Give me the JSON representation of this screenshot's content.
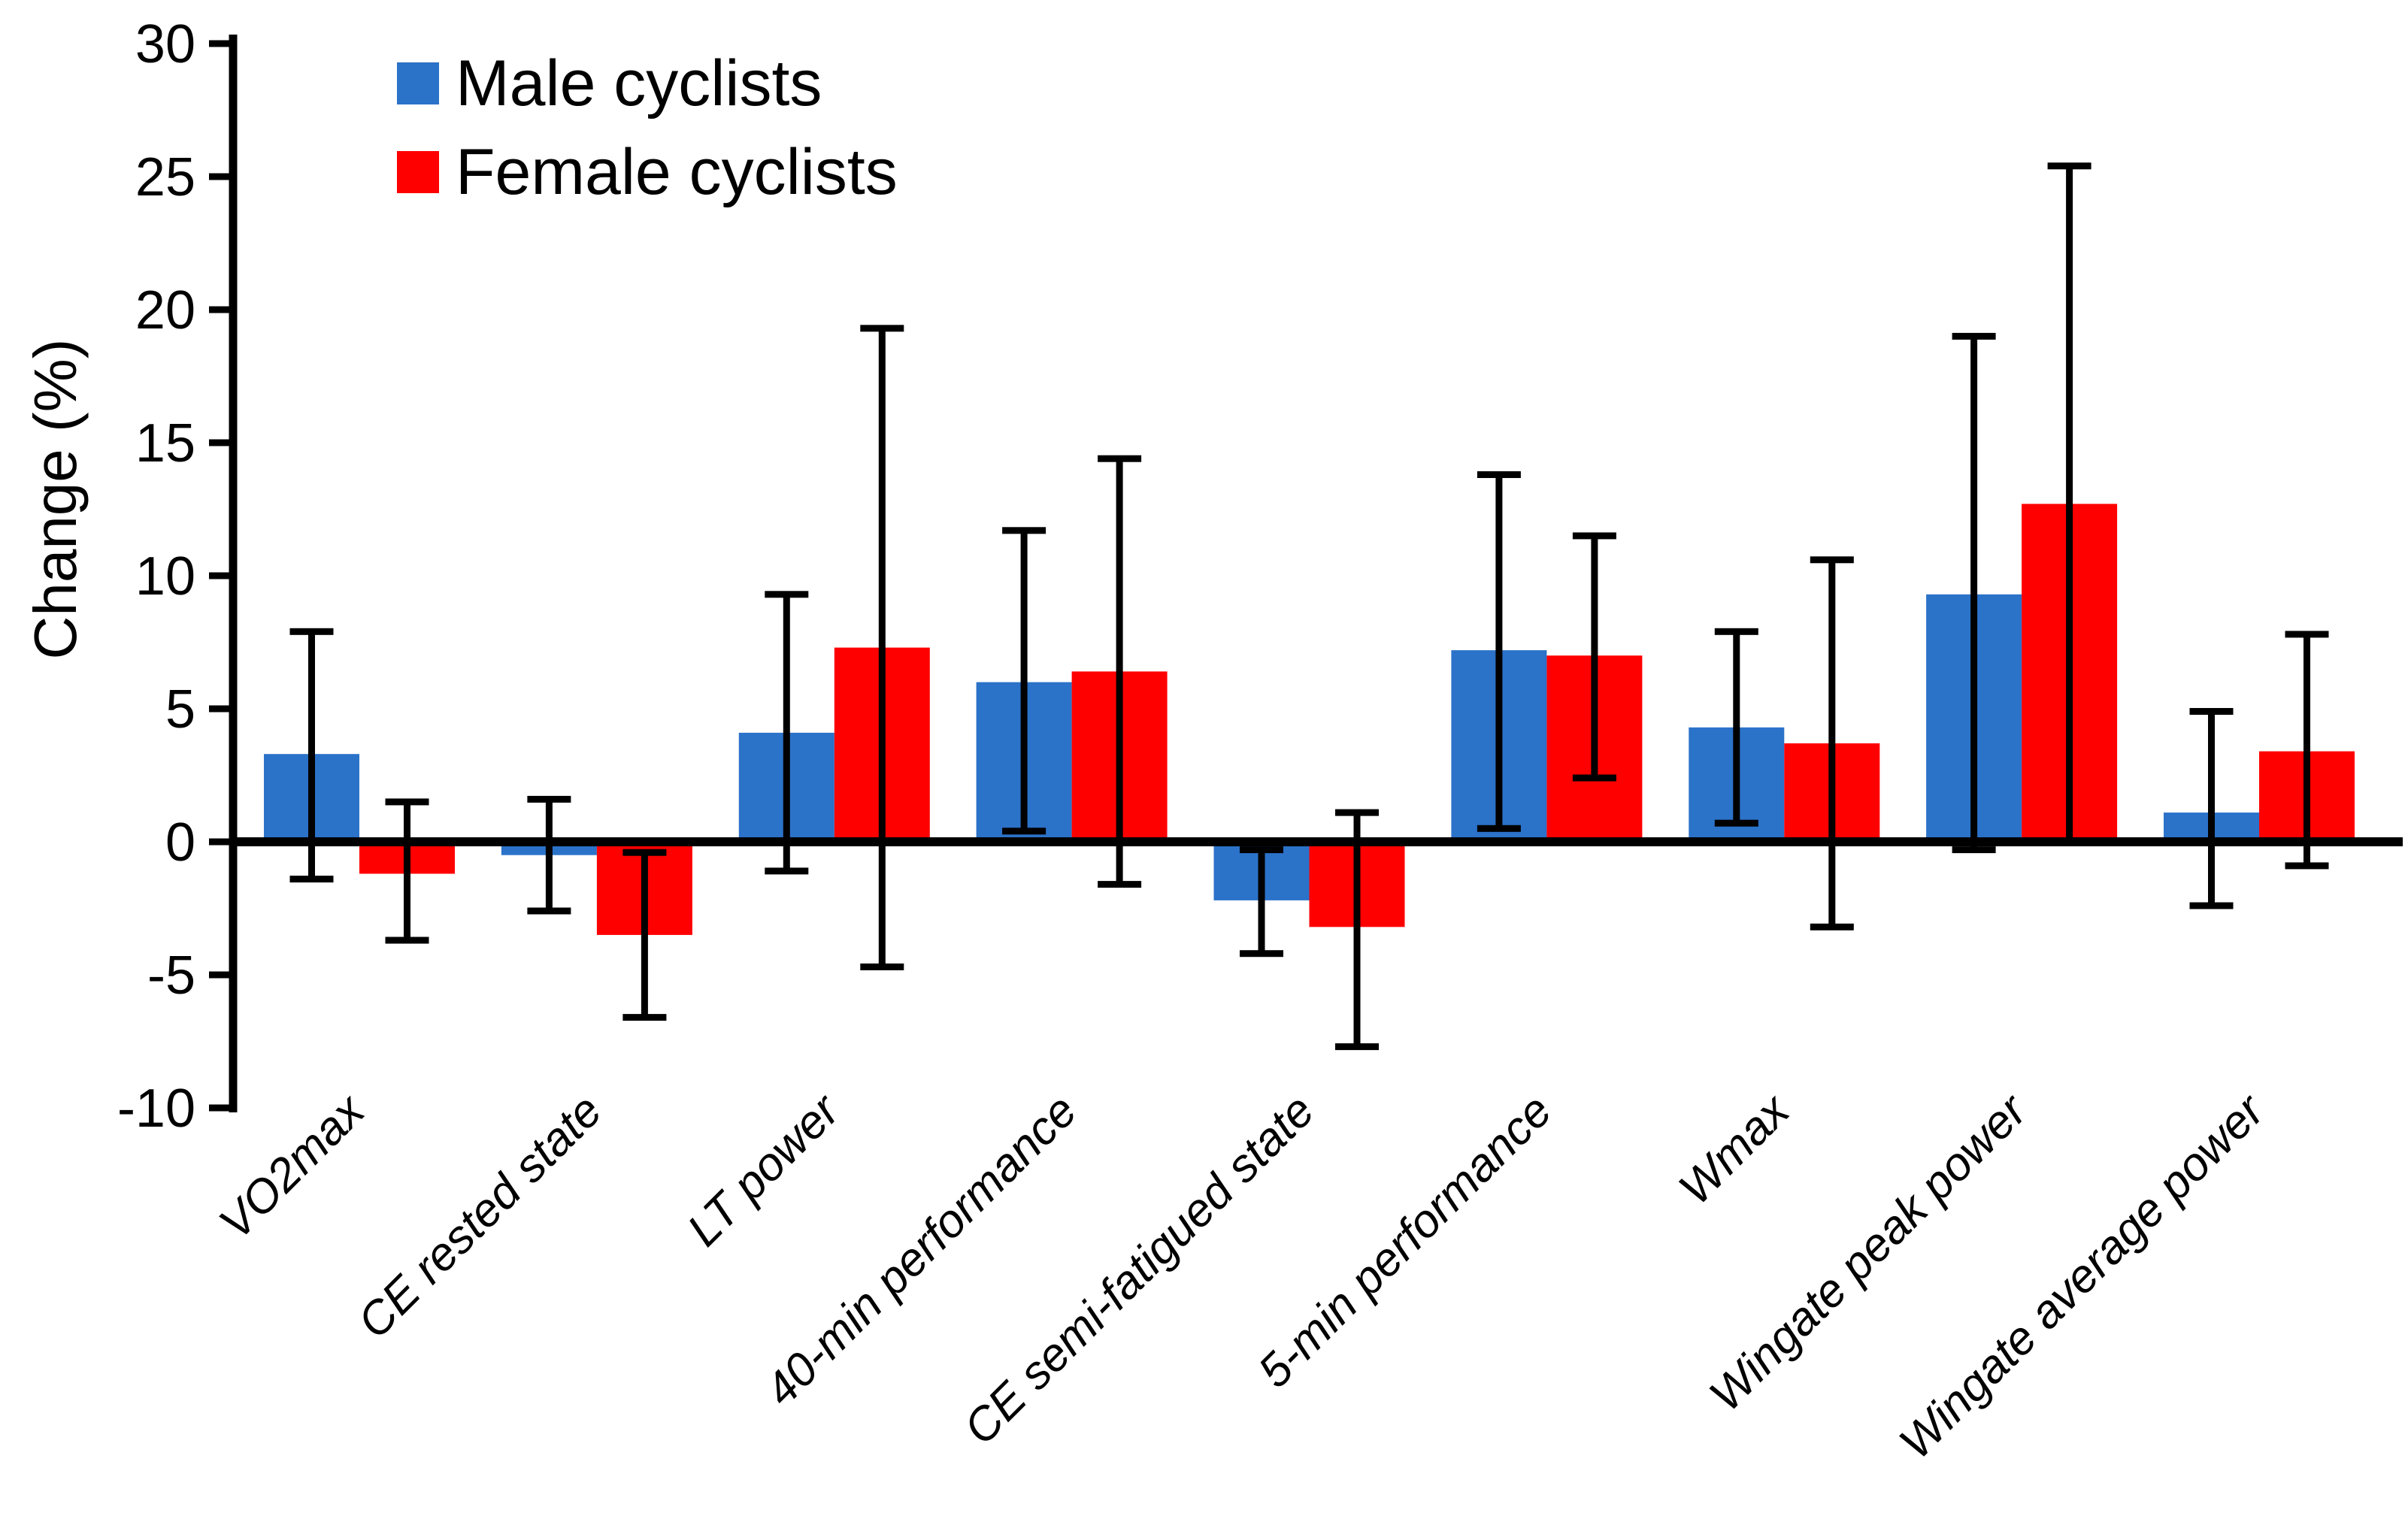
{
  "figure": {
    "background": "#FFFFFF",
    "text_color": "#000000"
  },
  "legend": {
    "position": "top-left-inside",
    "items": [
      {
        "label": "Male cyclists",
        "color": "#2B72C9"
      },
      {
        "label": "Female cyclists",
        "color": "#FF0000"
      }
    ]
  },
  "chart_data": {
    "type": "bar",
    "title": "",
    "xlabel": "",
    "ylabel": "Change (%)",
    "ylim": [
      -10,
      30
    ],
    "ytick_interval": 5,
    "yticks": [
      30,
      25,
      20,
      15,
      10,
      5,
      0,
      -5,
      -10
    ],
    "grid": false,
    "error_bars": true,
    "bar_color_black": "#000000",
    "categories": [
      "VO2max",
      "CE rested state",
      "LT power",
      "40-min performance",
      "CE semi-fatigued state",
      "5-min performance",
      "Wmax",
      "Wingate peak power",
      "Wingate average power"
    ],
    "series": [
      {
        "name": "Male cyclists",
        "color": "#2B72C9",
        "values": [
          3.3,
          -0.5,
          4.1,
          6.0,
          -2.2,
          7.2,
          4.3,
          9.3,
          1.1
        ],
        "ci_low": [
          -1.4,
          -2.6,
          -1.1,
          0.4,
          -4.2,
          0.5,
          0.7,
          -0.3,
          -2.4
        ],
        "ci_high": [
          7.9,
          1.6,
          9.3,
          11.7,
          -0.3,
          13.8,
          7.9,
          19.0,
          4.9
        ]
      },
      {
        "name": "Female cyclists",
        "color": "#FF0000",
        "values": [
          -1.2,
          -3.5,
          7.3,
          6.4,
          -3.2,
          7.0,
          3.7,
          12.7,
          3.4
        ],
        "ci_low": [
          -3.7,
          -6.6,
          -4.7,
          -1.6,
          -7.7,
          2.4,
          -3.2,
          0.0,
          -0.9
        ],
        "ci_high": [
          1.5,
          -0.4,
          19.3,
          14.4,
          1.1,
          11.5,
          10.6,
          25.4,
          7.8
        ]
      }
    ]
  }
}
